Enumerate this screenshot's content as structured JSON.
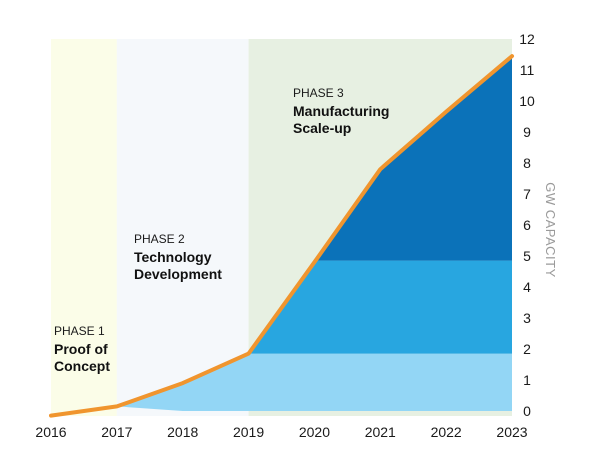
{
  "chart_data": {
    "type": "area",
    "title": "",
    "xlabel": "",
    "ylabel": "GW CAPACITY",
    "x": [
      2016,
      2017,
      2018,
      2019,
      2020,
      2021,
      2022,
      2023
    ],
    "xlim": [
      2016,
      2023
    ],
    "ylim": [
      0,
      12
    ],
    "y_ticks": [
      0,
      1,
      2,
      3,
      4,
      5,
      6,
      7,
      8,
      9,
      10,
      11,
      12
    ],
    "y_axis_side": "right",
    "grid": false,
    "legend": "none",
    "series": [
      {
        "values": [
          -0.15,
          0.15,
          0.9,
          1.85,
          4.8,
          7.8,
          9.65,
          11.45
        ]
      }
    ],
    "bands": [
      {
        "name": "",
        "color": "#93d6f5",
        "from_value": 0,
        "to_value": 1.85,
        "start_x": 2017,
        "start_x_bottom": 2018
      },
      {
        "name": "",
        "color": "#28a6e0",
        "from_value": 1.85,
        "to_value": 4.85
      },
      {
        "name": "",
        "color": "#0b72b9",
        "from_value": 4.85,
        "to_value": 12
      }
    ],
    "phases": [
      {
        "number": "PHASE 1",
        "name_lines": [
          "Proof of",
          "Concept"
        ],
        "from": 2016,
        "to": 2017,
        "color": "#fbfde8"
      },
      {
        "number": "PHASE 2",
        "name_lines": [
          "Technology",
          "Development"
        ],
        "from": 2017,
        "to": 2019,
        "color": "#f5f8fb"
      },
      {
        "number": "PHASE 3",
        "name_lines": [
          "Manufacturing",
          "Scale-up"
        ],
        "from": 2019,
        "to": 2023,
        "color": "#e7f0e2"
      }
    ],
    "line_color": "#f0952e"
  }
}
